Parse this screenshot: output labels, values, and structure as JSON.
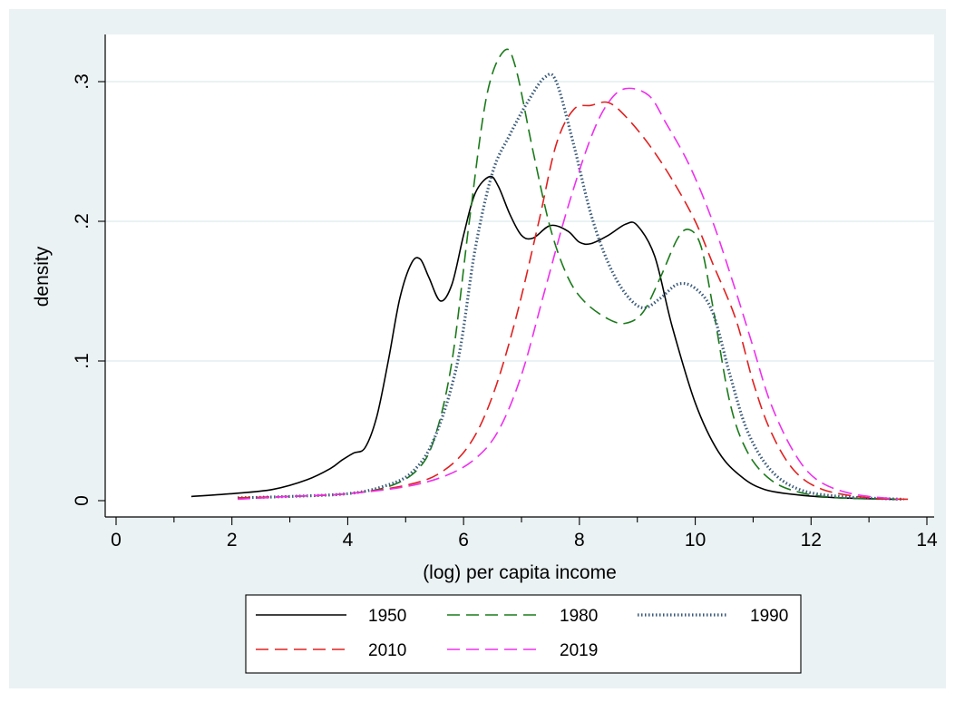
{
  "chart_data": {
    "type": "line",
    "title": "",
    "xlabel": "(log) per capita income",
    "ylabel": "density",
    "xlim": [
      0,
      14
    ],
    "ylim": [
      0,
      0.33
    ],
    "x_ticks": [
      0,
      2,
      4,
      6,
      8,
      10,
      12,
      14
    ],
    "x_tick_labels": [
      "0",
      "2",
      "4",
      "6",
      "8",
      "10",
      "12",
      "14"
    ],
    "y_ticks": [
      0,
      0.1,
      0.2,
      0.3
    ],
    "y_tick_labels": [
      "0",
      ".1",
      ".2",
      ".3"
    ],
    "grid": "horizontal",
    "legend": "bottom",
    "colors": {
      "plot_background": "#ffffff",
      "outer_background": "#eaf2f3",
      "grid": "#eaf2f3"
    },
    "series": [
      {
        "name": "1950",
        "color": "#000000",
        "dash": "solid",
        "points": [
          [
            1.3,
            0.003
          ],
          [
            2.0,
            0.005
          ],
          [
            2.7,
            0.008
          ],
          [
            3.3,
            0.015
          ],
          [
            3.7,
            0.023
          ],
          [
            3.9,
            0.029
          ],
          [
            4.1,
            0.034
          ],
          [
            4.3,
            0.038
          ],
          [
            4.5,
            0.06
          ],
          [
            4.7,
            0.1
          ],
          [
            4.9,
            0.145
          ],
          [
            5.1,
            0.17
          ],
          [
            5.25,
            0.173
          ],
          [
            5.4,
            0.16
          ],
          [
            5.6,
            0.143
          ],
          [
            5.8,
            0.155
          ],
          [
            6.0,
            0.19
          ],
          [
            6.2,
            0.22
          ],
          [
            6.45,
            0.232
          ],
          [
            6.6,
            0.225
          ],
          [
            6.8,
            0.205
          ],
          [
            7.0,
            0.19
          ],
          [
            7.2,
            0.188
          ],
          [
            7.5,
            0.197
          ],
          [
            7.8,
            0.193
          ],
          [
            8.0,
            0.185
          ],
          [
            8.2,
            0.184
          ],
          [
            8.5,
            0.19
          ],
          [
            8.8,
            0.198
          ],
          [
            9.0,
            0.197
          ],
          [
            9.3,
            0.175
          ],
          [
            9.6,
            0.125
          ],
          [
            10.0,
            0.07
          ],
          [
            10.4,
            0.035
          ],
          [
            10.8,
            0.017
          ],
          [
            11.2,
            0.008
          ],
          [
            11.8,
            0.004
          ],
          [
            12.5,
            0.002
          ],
          [
            13.5,
            0.001
          ]
        ]
      },
      {
        "name": "1980",
        "color": "#1a7a1a",
        "dash": "dashed",
        "points": [
          [
            2.1,
            0.002
          ],
          [
            3.0,
            0.003
          ],
          [
            4.0,
            0.005
          ],
          [
            4.7,
            0.01
          ],
          [
            5.2,
            0.022
          ],
          [
            5.5,
            0.045
          ],
          [
            5.8,
            0.1
          ],
          [
            6.1,
            0.2
          ],
          [
            6.4,
            0.29
          ],
          [
            6.7,
            0.322
          ],
          [
            6.9,
            0.31
          ],
          [
            7.2,
            0.25
          ],
          [
            7.5,
            0.195
          ],
          [
            7.8,
            0.16
          ],
          [
            8.1,
            0.142
          ],
          [
            8.5,
            0.13
          ],
          [
            8.8,
            0.127
          ],
          [
            9.1,
            0.135
          ],
          [
            9.4,
            0.16
          ],
          [
            9.7,
            0.188
          ],
          [
            9.9,
            0.194
          ],
          [
            10.1,
            0.182
          ],
          [
            10.3,
            0.14
          ],
          [
            10.6,
            0.07
          ],
          [
            10.9,
            0.035
          ],
          [
            11.3,
            0.015
          ],
          [
            11.8,
            0.006
          ],
          [
            12.5,
            0.002
          ],
          [
            13.5,
            0.001
          ]
        ]
      },
      {
        "name": "1990",
        "color": "#3a5a7a",
        "dash": "dotted",
        "points": [
          [
            2.1,
            0.002
          ],
          [
            3.0,
            0.003
          ],
          [
            4.0,
            0.005
          ],
          [
            4.6,
            0.01
          ],
          [
            5.1,
            0.02
          ],
          [
            5.5,
            0.045
          ],
          [
            5.9,
            0.1
          ],
          [
            6.2,
            0.18
          ],
          [
            6.5,
            0.235
          ],
          [
            6.8,
            0.262
          ],
          [
            7.1,
            0.285
          ],
          [
            7.4,
            0.303
          ],
          [
            7.6,
            0.3
          ],
          [
            7.9,
            0.255
          ],
          [
            8.2,
            0.205
          ],
          [
            8.5,
            0.17
          ],
          [
            8.8,
            0.148
          ],
          [
            9.1,
            0.138
          ],
          [
            9.4,
            0.145
          ],
          [
            9.7,
            0.155
          ],
          [
            10.0,
            0.152
          ],
          [
            10.3,
            0.135
          ],
          [
            10.6,
            0.09
          ],
          [
            10.9,
            0.05
          ],
          [
            11.3,
            0.022
          ],
          [
            11.8,
            0.008
          ],
          [
            12.5,
            0.003
          ],
          [
            13.6,
            0.001
          ]
        ]
      },
      {
        "name": "2010",
        "color": "#e02020",
        "dash": "dashed",
        "points": [
          [
            2.1,
            0.002
          ],
          [
            3.0,
            0.003
          ],
          [
            4.0,
            0.005
          ],
          [
            5.0,
            0.011
          ],
          [
            5.6,
            0.02
          ],
          [
            6.1,
            0.04
          ],
          [
            6.5,
            0.075
          ],
          [
            6.9,
            0.13
          ],
          [
            7.3,
            0.2
          ],
          [
            7.6,
            0.255
          ],
          [
            7.9,
            0.28
          ],
          [
            8.2,
            0.283
          ],
          [
            8.5,
            0.285
          ],
          [
            8.8,
            0.275
          ],
          [
            9.2,
            0.255
          ],
          [
            9.6,
            0.23
          ],
          [
            10.0,
            0.2
          ],
          [
            10.3,
            0.17
          ],
          [
            10.7,
            0.13
          ],
          [
            11.0,
            0.085
          ],
          [
            11.3,
            0.05
          ],
          [
            11.7,
            0.022
          ],
          [
            12.2,
            0.008
          ],
          [
            13.0,
            0.002
          ],
          [
            13.7,
            0.001
          ]
        ]
      },
      {
        "name": "2019",
        "color": "#ee30ee",
        "dash": "dashed",
        "points": [
          [
            2.1,
            0.001
          ],
          [
            3.0,
            0.003
          ],
          [
            4.0,
            0.005
          ],
          [
            5.0,
            0.01
          ],
          [
            5.7,
            0.018
          ],
          [
            6.2,
            0.03
          ],
          [
            6.6,
            0.05
          ],
          [
            7.0,
            0.09
          ],
          [
            7.4,
            0.15
          ],
          [
            7.8,
            0.21
          ],
          [
            8.2,
            0.26
          ],
          [
            8.5,
            0.285
          ],
          [
            8.8,
            0.295
          ],
          [
            9.2,
            0.29
          ],
          [
            9.5,
            0.27
          ],
          [
            9.9,
            0.24
          ],
          [
            10.3,
            0.2
          ],
          [
            10.7,
            0.15
          ],
          [
            11.0,
            0.11
          ],
          [
            11.3,
            0.07
          ],
          [
            11.7,
            0.035
          ],
          [
            12.1,
            0.015
          ],
          [
            12.7,
            0.005
          ],
          [
            13.5,
            0.001
          ]
        ]
      }
    ]
  }
}
